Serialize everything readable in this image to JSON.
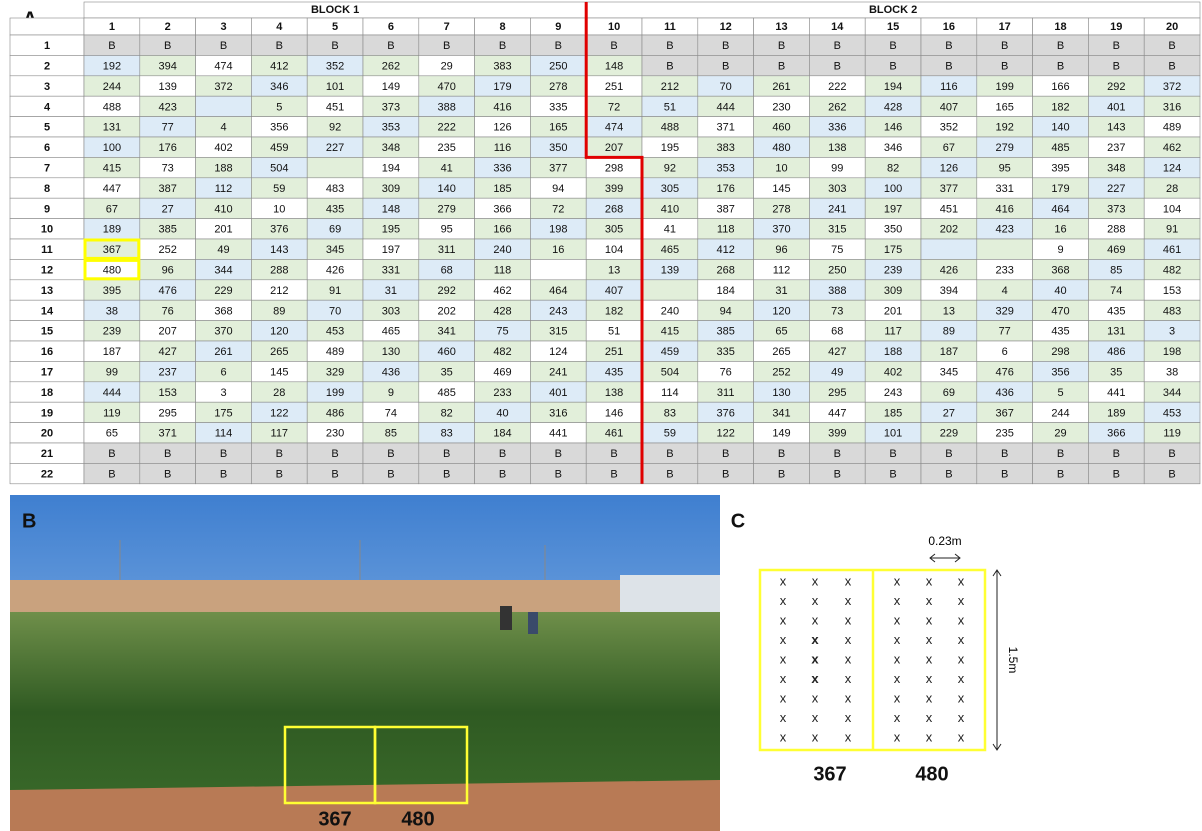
{
  "panel_a": {
    "label": "A",
    "blocks": [
      "BLOCK 1",
      "BLOCK 2"
    ],
    "columns": [
      1,
      2,
      3,
      4,
      5,
      6,
      7,
      8,
      9,
      10,
      11,
      12,
      13,
      14,
      15,
      16,
      17,
      18,
      19,
      20
    ],
    "row_labels": [
      1,
      2,
      3,
      4,
      5,
      6,
      7,
      8,
      9,
      10,
      11,
      12,
      13,
      14,
      15,
      16,
      17,
      18,
      19,
      20,
      21,
      22
    ],
    "rows": [
      [
        "B",
        "B",
        "B",
        "B",
        "B",
        "B",
        "B",
        "B",
        "B",
        "B",
        "B",
        "B",
        "B",
        "B",
        "B",
        "B",
        "B",
        "B",
        "B",
        "B"
      ],
      [
        192,
        394,
        474,
        412,
        352,
        262,
        29,
        383,
        250,
        148,
        "B",
        "B",
        "B",
        "B",
        "B",
        "B",
        "B",
        "B",
        "B",
        "B"
      ],
      [
        244,
        139,
        372,
        346,
        101,
        149,
        470,
        179,
        278,
        251,
        212,
        70,
        261,
        222,
        194,
        116,
        199,
        166,
        292,
        372
      ],
      [
        488,
        423,
        null,
        5,
        451,
        373,
        388,
        416,
        335,
        72,
        51,
        444,
        230,
        262,
        428,
        407,
        165,
        182,
        401,
        316
      ],
      [
        131,
        77,
        4,
        356,
        92,
        353,
        222,
        126,
        165,
        474,
        488,
        371,
        460,
        336,
        146,
        352,
        192,
        140,
        143,
        489
      ],
      [
        100,
        176,
        402,
        459,
        227,
        348,
        235,
        116,
        350,
        207,
        195,
        383,
        480,
        138,
        346,
        67,
        279,
        485,
        237,
        462
      ],
      [
        415,
        73,
        188,
        504,
        null,
        194,
        41,
        336,
        377,
        298,
        92,
        353,
        10,
        99,
        82,
        126,
        95,
        395,
        348,
        124
      ],
      [
        447,
        387,
        112,
        59,
        483,
        309,
        140,
        185,
        94,
        399,
        305,
        176,
        145,
        303,
        100,
        377,
        331,
        179,
        227,
        28
      ],
      [
        67,
        27,
        410,
        10,
        435,
        148,
        279,
        366,
        72,
        268,
        410,
        387,
        278,
        241,
        197,
        451,
        416,
        464,
        373,
        104
      ],
      [
        189,
        385,
        201,
        376,
        69,
        195,
        95,
        166,
        198,
        305,
        41,
        118,
        370,
        315,
        350,
        202,
        423,
        16,
        288,
        91
      ],
      [
        367,
        252,
        49,
        143,
        345,
        197,
        311,
        240,
        16,
        104,
        465,
        412,
        96,
        75,
        175,
        null,
        null,
        9,
        469,
        461
      ],
      [
        480,
        96,
        344,
        288,
        426,
        331,
        68,
        118,
        null,
        13,
        139,
        268,
        112,
        250,
        239,
        426,
        233,
        368,
        85,
        482
      ],
      [
        395,
        476,
        229,
        212,
        91,
        31,
        292,
        462,
        464,
        407,
        null,
        184,
        31,
        388,
        309,
        394,
        4,
        40,
        74,
        153
      ],
      [
        38,
        76,
        368,
        89,
        70,
        303,
        202,
        428,
        243,
        182,
        240,
        94,
        120,
        73,
        201,
        13,
        329,
        470,
        435,
        483
      ],
      [
        239,
        207,
        370,
        120,
        453,
        465,
        341,
        75,
        315,
        51,
        415,
        385,
        65,
        68,
        117,
        89,
        77,
        435,
        131,
        3
      ],
      [
        187,
        427,
        261,
        265,
        489,
        130,
        460,
        482,
        124,
        251,
        459,
        335,
        265,
        427,
        188,
        187,
        6,
        298,
        486,
        198
      ],
      [
        99,
        237,
        6,
        145,
        329,
        436,
        35,
        469,
        241,
        435,
        504,
        76,
        252,
        49,
        402,
        345,
        476,
        356,
        35,
        38
      ],
      [
        444,
        153,
        3,
        28,
        199,
        9,
        485,
        233,
        401,
        138,
        114,
        311,
        130,
        295,
        243,
        69,
        436,
        5,
        441,
        344
      ],
      [
        119,
        295,
        175,
        122,
        486,
        74,
        82,
        40,
        316,
        146,
        83,
        376,
        341,
        447,
        185,
        27,
        367,
        244,
        189,
        453
      ],
      [
        65,
        371,
        114,
        117,
        230,
        85,
        83,
        184,
        441,
        461,
        59,
        122,
        149,
        399,
        101,
        229,
        235,
        29,
        366,
        119
      ],
      [
        "B",
        "B",
        "B",
        "B",
        "B",
        "B",
        "B",
        "B",
        "B",
        "B",
        "B",
        "B",
        "B",
        "B",
        "B",
        "B",
        "B",
        "B",
        "B",
        "B"
      ],
      [
        "B",
        "B",
        "B",
        "B",
        "B",
        "B",
        "B",
        "B",
        "B",
        "B",
        "B",
        "B",
        "B",
        "B",
        "B",
        "B",
        "B",
        "B",
        "B",
        "B"
      ]
    ]
  },
  "panel_b": {
    "label": "B",
    "plots": [
      367,
      480
    ]
  },
  "panel_c": {
    "label": "C",
    "spacing": "0.23m",
    "length": "1.5m",
    "plots": [
      367,
      480
    ]
  }
}
